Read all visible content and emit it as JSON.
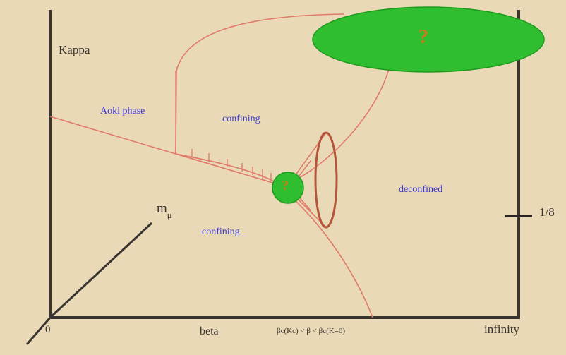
{
  "axes": {
    "kappa": "Kappa",
    "origin": "0",
    "beta": "beta",
    "infinity": "infinity",
    "one_eighth": "1/8",
    "m": "m",
    "mu": "μ",
    "beta_range": "βc(Kc) < β < βc(K=0)"
  },
  "regions": {
    "aoki": "Aoki phase",
    "confining_upper": "confining",
    "confining_lower": "confining",
    "deconfined": "deconfined"
  },
  "markers": {
    "top_question": "?",
    "mid_question": "?"
  },
  "colors": {
    "background": "#ead9b6",
    "axis": "#3a3430",
    "phase_line": "#e07a6a",
    "ellipse_fill": "#2fbe2f",
    "region_text": "#3b3ad8",
    "question": "#d0781a",
    "ring": "#b5553a"
  }
}
